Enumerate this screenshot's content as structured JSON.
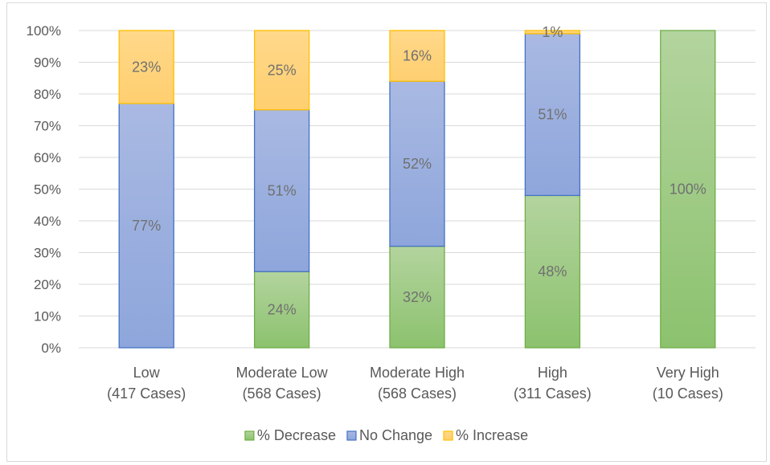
{
  "chart_data": {
    "type": "bar",
    "stacked": true,
    "percent_stacked": true,
    "categories": [
      [
        "Low",
        "(417 Cases)"
      ],
      [
        "Moderate Low",
        "(568 Cases)"
      ],
      [
        "Moderate High",
        "(568 Cases)"
      ],
      [
        "High",
        "(311 Cases)"
      ],
      [
        "Very High",
        "(10 Cases)"
      ]
    ],
    "series": [
      {
        "name": "% Decrease",
        "values": [
          0,
          24,
          32,
          48,
          100
        ],
        "labels": [
          "",
          "24%",
          "32%",
          "48%",
          "100%"
        ],
        "color_top": "#b3d49e",
        "color_bottom": "#8cc26e",
        "stroke": "#70ad47"
      },
      {
        "name": "No Change",
        "values": [
          77,
          51,
          52,
          51,
          0
        ],
        "labels": [
          "77%",
          "51%",
          "52%",
          "51%",
          ""
        ],
        "color_top": "#a9b9e2",
        "color_bottom": "#8ea6dc",
        "stroke": "#4472c4"
      },
      {
        "name": "% Increase",
        "values": [
          23,
          25,
          16,
          1,
          0
        ],
        "labels": [
          "23%",
          "25%",
          "16%",
          "1%",
          ""
        ],
        "color_top": "#ffd88a",
        "color_bottom": "#ffcf70",
        "stroke": "#ffc000"
      }
    ],
    "yticks": [
      "0%",
      "10%",
      "20%",
      "30%",
      "40%",
      "50%",
      "60%",
      "70%",
      "80%",
      "90%",
      "100%"
    ],
    "ylim": [
      0,
      100
    ],
    "grid": true,
    "legend_position": "bottom",
    "title": "",
    "xlabel": "",
    "ylabel": ""
  }
}
